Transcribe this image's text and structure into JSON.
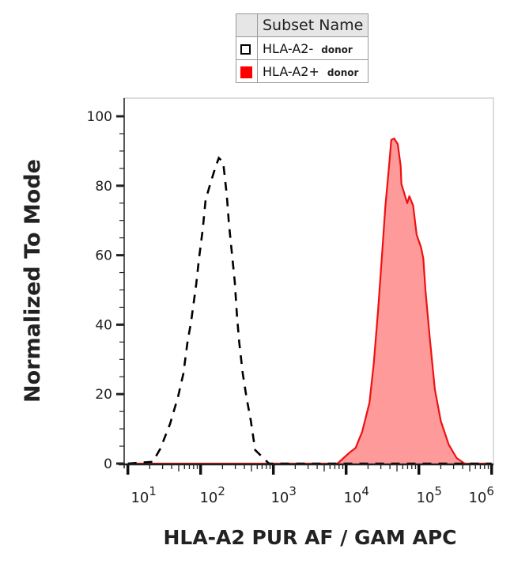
{
  "legend": {
    "header": "Subset Name",
    "entries": [
      {
        "name": "HLA-A2-",
        "tag": "donor",
        "swatch": "outline",
        "color": "#000000"
      },
      {
        "name": "HLA-A2+",
        "tag": "donor",
        "swatch": "filled",
        "color": "#ff0000"
      }
    ]
  },
  "chart_data": {
    "type": "area",
    "xlabel": "HLA-A2 PUR AF / GAM APC",
    "ylabel": "Normalized To Mode",
    "xscale": "log",
    "xlim": [
      10,
      1000000
    ],
    "ylim": [
      0,
      100
    ],
    "grid": false,
    "legend_position": "top",
    "xticks": [
      {
        "base": "10",
        "exp": "1",
        "value": 10
      },
      {
        "base": "10",
        "exp": "2",
        "value": 100
      },
      {
        "base": "10",
        "exp": "3",
        "value": 1000
      },
      {
        "base": "10",
        "exp": "4",
        "value": 10000
      },
      {
        "base": "10",
        "exp": "5",
        "value": 100000
      },
      {
        "base": "10",
        "exp": "6",
        "value": 1000000
      }
    ],
    "yticks": [
      "0",
      "20",
      "40",
      "60",
      "80",
      "100"
    ],
    "series": [
      {
        "name": "HLA-A2-",
        "style": "dashed-outline",
        "color": "#000000",
        "x": [
          10,
          22,
          28,
          38,
          49,
          58,
          66,
          74,
          87,
          95,
          107,
          117,
          138,
          158,
          178,
          204,
          229,
          245,
          269,
          295,
          316,
          339,
          380,
          427,
          490,
          562,
          871,
          1000000
        ],
        "y": [
          0,
          0.5,
          4.3,
          11.4,
          19.3,
          25.9,
          35,
          40.9,
          51.6,
          59.1,
          67.5,
          75.9,
          81.1,
          85,
          88,
          86.8,
          77.3,
          69.1,
          60.7,
          52.3,
          42.5,
          35,
          25.9,
          19.1,
          12.3,
          3.9,
          0,
          0
        ]
      },
      {
        "name": "HLA-A2+",
        "style": "filled",
        "color": "#ee1111",
        "fill": "#ff9a9a",
        "x": [
          10,
          7600,
          11200,
          13500,
          16600,
          20900,
          24000,
          27500,
          30900,
          34700,
          38900,
          41700,
          45700,
          51300,
          56200,
          57500,
          69200,
          74100,
          83200,
          93300,
          107000,
          115000,
          123000,
          141000,
          166000,
          200000,
          257000,
          331000,
          427000,
          1000000
        ],
        "y": [
          0,
          0,
          3.2,
          4.5,
          9.1,
          17.5,
          28.9,
          44.1,
          59.1,
          74.3,
          85.7,
          93.2,
          93.6,
          92,
          85.7,
          80.5,
          75,
          77,
          74.3,
          65.9,
          62.3,
          59.1,
          50,
          36.4,
          21.4,
          12.3,
          5.5,
          1.6,
          0,
          0
        ]
      }
    ]
  }
}
